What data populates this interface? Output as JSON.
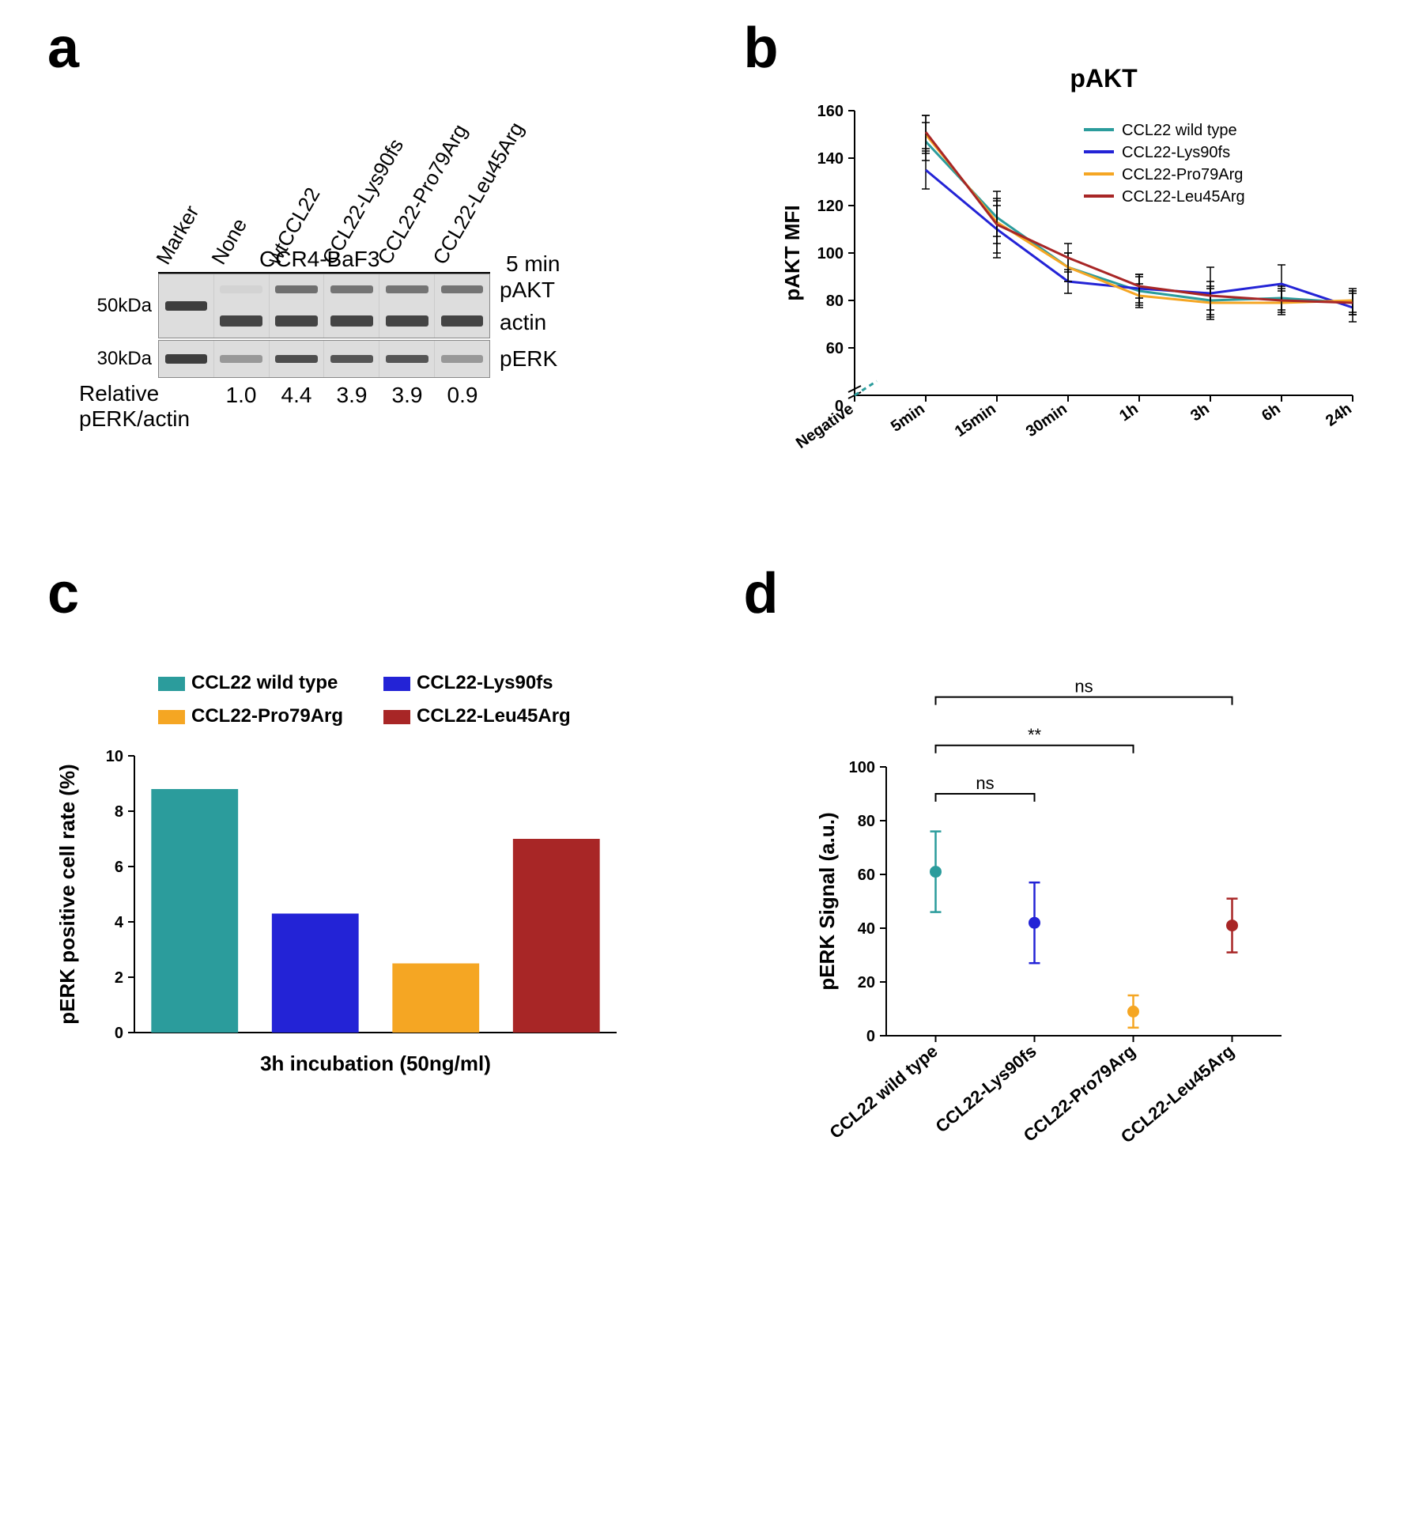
{
  "colors": {
    "wildtype": "#2b9c9c",
    "lys90fs": "#2323d6",
    "pro79arg": "#f5a623",
    "leu45arg": "#a82626",
    "axis": "#000000",
    "bg": "#ffffff"
  },
  "panel_labels": {
    "a": "a",
    "b": "b",
    "c": "c",
    "d": "d"
  },
  "panel_a": {
    "lane_labels": [
      "Marker",
      "None",
      "wtCCL22",
      "CCL22-Lys90fs",
      "CCL22-Pro79Arg",
      "CCL22-Leu45Arg"
    ],
    "group_label": "CCR4-BaF3",
    "time_label": "5 min",
    "mw_labels": [
      "50kDa",
      "30kDa"
    ],
    "row_labels": [
      "pAKT",
      "actin",
      "pERK"
    ],
    "ratio_caption": "Relative\npERK/actin",
    "ratio_values": [
      "1.0",
      "4.4",
      "3.9",
      "3.9",
      "0.9"
    ],
    "bands": {
      "pAKT_intensity": [
        0,
        0,
        0.9,
        0.85,
        0.85,
        0.85
      ],
      "actin_intensity": [
        0,
        0.9,
        0.9,
        0.9,
        0.9,
        0.9
      ],
      "pERK_intensity": [
        0,
        0.4,
        0.9,
        0.85,
        0.85,
        0.4
      ],
      "marker_50": 1,
      "marker_30": 1
    }
  },
  "panel_b": {
    "title": "pAKT",
    "ylabel": "pAKT MFI",
    "xticks": [
      "Negative",
      "5min",
      "15min",
      "30min",
      "1h",
      "3h",
      "6h",
      "24h"
    ],
    "ylim": [
      40,
      160
    ],
    "ytick_step": 20,
    "y_break": true,
    "series": [
      {
        "name": "CCL22 wild type",
        "color_key": "wildtype",
        "y": [
          null,
          147,
          115,
          94,
          84,
          80,
          81,
          79
        ],
        "err": [
          0,
          8,
          8,
          6,
          6,
          6,
          5,
          5
        ]
      },
      {
        "name": "CCL22-Lys90fs",
        "color_key": "lys90fs",
        "y": [
          null,
          135,
          110,
          88,
          85,
          83,
          87,
          77
        ],
        "err": [
          0,
          8,
          10,
          5,
          6,
          11,
          8,
          6
        ]
      },
      {
        "name": "CCL22-Pro79Arg",
        "color_key": "pro79arg",
        "y": [
          null,
          150,
          113,
          94,
          82,
          79,
          79,
          80
        ],
        "err": [
          0,
          8,
          9,
          6,
          5,
          6,
          5,
          5
        ]
      },
      {
        "name": "CCL22-Leu45Arg",
        "color_key": "leu45arg",
        "y": [
          null,
          151,
          112,
          98,
          86,
          82,
          80,
          79
        ],
        "err": [
          0,
          7,
          14,
          6,
          5,
          6,
          5,
          5
        ]
      }
    ],
    "neg_segment_color": "#2b9c9c",
    "neg_segment_y0": 40,
    "legend_fontsize": 22,
    "tick_fontsize": 20,
    "label_fontsize": 26
  },
  "panel_c": {
    "ylabel": "pERK positive cell rate (%)",
    "xlabel": "3h incubation (50ng/ml)",
    "ylim": [
      0,
      10
    ],
    "ytick_step": 2,
    "bars": [
      {
        "name": "CCL22 wild type",
        "color_key": "wildtype",
        "value": 8.8
      },
      {
        "name": "CCL22-Lys90fs",
        "color_key": "lys90fs",
        "value": 4.3
      },
      {
        "name": "CCL22-Pro79Arg",
        "color_key": "pro79arg",
        "value": 2.5
      },
      {
        "name": "CCL22-Leu45Arg",
        "color_key": "leu45arg",
        "value": 7.0
      }
    ],
    "bar_width": 0.72,
    "legend_fontsize": 24
  },
  "panel_d": {
    "ylabel": "pERK Signal (a.u.)",
    "ylim": [
      0,
      100
    ],
    "ytick_step": 20,
    "xticks": [
      "CCL22 wild type",
      "CCL22-Lys90fs",
      "CCL22-Pro79Arg",
      "CCL22-Leu45Arg"
    ],
    "points": [
      {
        "name": "CCL22 wild type",
        "color_key": "wildtype",
        "mean": 61,
        "err": 15
      },
      {
        "name": "CCL22-Lys90fs",
        "color_key": "lys90fs",
        "mean": 42,
        "err": 15
      },
      {
        "name": "CCL22-Pro79Arg",
        "color_key": "pro79arg",
        "mean": 9,
        "err": 6
      },
      {
        "name": "CCL22-Leu45Arg",
        "color_key": "leu45arg",
        "mean": 41,
        "err": 10
      }
    ],
    "significance": [
      {
        "from": 0,
        "to": 1,
        "label": "ns",
        "y": 90
      },
      {
        "from": 0,
        "to": 2,
        "label": "**",
        "y": 108
      },
      {
        "from": 0,
        "to": 3,
        "label": "ns",
        "y": 126
      }
    ],
    "marker_radius": 7
  }
}
